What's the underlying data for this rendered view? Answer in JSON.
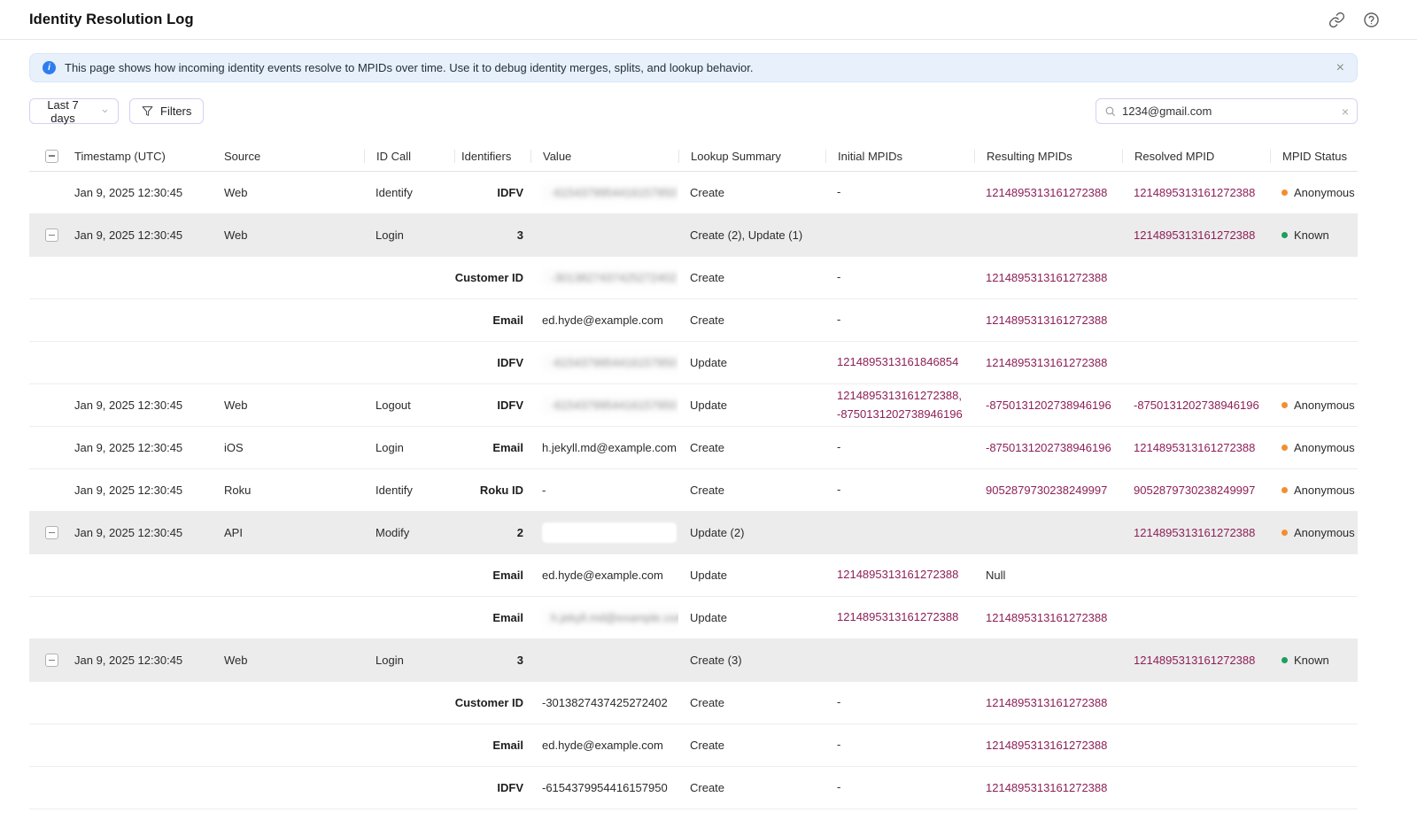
{
  "header": {
    "title": "Identity Resolution Log"
  },
  "banner": {
    "text": "This page shows how incoming identity events resolve to MPIDs over time. Use it to debug identity merges, splits, and lookup behavior.",
    "close_glyph": "×"
  },
  "toolbar": {
    "date_range": "Last 7 days",
    "filters_label": "Filters",
    "search_value": "1234@gmail.com",
    "clear_glyph": "×"
  },
  "colors": {
    "mpid": "#8D2058",
    "anonymous": "#F18F2F",
    "known": "#1BA05B",
    "banner_bg": "#E8F1FB",
    "accent_border": "#D9CEF5"
  },
  "table": {
    "columns": [
      "",
      "Timestamp (UTC)",
      "Source",
      "ID Call",
      "Identifiers",
      "Value",
      "Lookup Summary",
      "Initial MPIDs",
      "Resulting MPIDs",
      "Resolved MPID",
      "MPID Status"
    ],
    "rows": [
      {
        "type": "single",
        "expandable": false,
        "timestamp": "Jan 9, 2025 12:30:45",
        "source": "Web",
        "id_call": "Identify",
        "identifier": "IDFV",
        "value": {
          "text": "-6154379954416157950",
          "blurred": true
        },
        "lookup": "Create",
        "initial": {
          "lines": [
            "-"
          ],
          "mpid": false
        },
        "resulting": {
          "text": "1214895313161272388",
          "mpid": true
        },
        "resolved": {
          "text": "1214895313161272388",
          "mpid": true
        },
        "status": {
          "label": "Anonymous",
          "color": "anonymous"
        }
      },
      {
        "type": "group",
        "expandable": true,
        "timestamp": "Jan 9, 2025 12:30:45",
        "source": "Web",
        "id_call": "Login",
        "identifier": "3",
        "value": null,
        "lookup": "Create (2), Update (1)",
        "initial": {
          "lines": [],
          "mpid": false
        },
        "resulting": {
          "text": "",
          "mpid": false
        },
        "resolved": {
          "text": "1214895313161272388",
          "mpid": true
        },
        "status": {
          "label": "Known",
          "color": "known"
        }
      },
      {
        "type": "child",
        "expandable": false,
        "timestamp": "",
        "source": "",
        "id_call": "",
        "identifier": "Customer ID",
        "value": {
          "text": "-3013827437425272402",
          "blurred": true
        },
        "lookup": "Create",
        "initial": {
          "lines": [
            "-"
          ],
          "mpid": false
        },
        "resulting": {
          "text": "1214895313161272388",
          "mpid": true
        },
        "resolved": {
          "text": "",
          "mpid": false
        },
        "status": null
      },
      {
        "type": "child",
        "expandable": false,
        "timestamp": "",
        "source": "",
        "id_call": "",
        "identifier": "Email",
        "value": {
          "text": "ed.hyde@example.com",
          "blurred": false
        },
        "lookup": "Create",
        "initial": {
          "lines": [
            "-"
          ],
          "mpid": false
        },
        "resulting": {
          "text": "1214895313161272388",
          "mpid": true
        },
        "resolved": {
          "text": "",
          "mpid": false
        },
        "status": null
      },
      {
        "type": "child",
        "expandable": false,
        "timestamp": "",
        "source": "",
        "id_call": "",
        "identifier": "IDFV",
        "value": {
          "text": "-6154379954416157950",
          "blurred": true
        },
        "lookup": "Update",
        "initial": {
          "lines": [
            "1214895313161846854"
          ],
          "mpid": true
        },
        "resulting": {
          "text": "1214895313161272388",
          "mpid": true
        },
        "resolved": {
          "text": "",
          "mpid": false
        },
        "status": null
      },
      {
        "type": "single",
        "expandable": false,
        "timestamp": "Jan 9, 2025 12:30:45",
        "source": "Web",
        "id_call": "Logout",
        "identifier": "IDFV",
        "value": {
          "text": "-6154379954416157950",
          "blurred": true
        },
        "lookup": "Update",
        "initial": {
          "lines": [
            "1214895313161272388,",
            "-8750131202738946196"
          ],
          "mpid": true
        },
        "resulting": {
          "text": "-8750131202738946196",
          "mpid": true
        },
        "resolved": {
          "text": "-8750131202738946196",
          "mpid": true
        },
        "status": {
          "label": "Anonymous",
          "color": "anonymous"
        }
      },
      {
        "type": "single",
        "expandable": false,
        "timestamp": "Jan 9, 2025 12:30:45",
        "source": "iOS",
        "id_call": "Login",
        "identifier": "Email",
        "value": {
          "text": "h.jekyll.md@example.com",
          "blurred": false
        },
        "lookup": "Create",
        "initial": {
          "lines": [
            "-"
          ],
          "mpid": false
        },
        "resulting": {
          "text": "-8750131202738946196",
          "mpid": true
        },
        "resolved": {
          "text": "1214895313161272388",
          "mpid": true
        },
        "status": {
          "label": "Anonymous",
          "color": "anonymous"
        }
      },
      {
        "type": "single",
        "expandable": false,
        "timestamp": "Jan 9, 2025 12:30:45",
        "source": "Roku",
        "id_call": "Identify",
        "identifier": "Roku ID",
        "value": {
          "text": "-",
          "blurred": false
        },
        "lookup": "Create",
        "initial": {
          "lines": [
            "-"
          ],
          "mpid": false
        },
        "resulting": {
          "text": "9052879730238249997",
          "mpid": true
        },
        "resolved": {
          "text": "9052879730238249997",
          "mpid": true
        },
        "status": {
          "label": "Anonymous",
          "color": "anonymous"
        }
      },
      {
        "type": "group",
        "expandable": true,
        "timestamp": "Jan 9, 2025 12:30:45",
        "source": "API",
        "id_call": "Modify",
        "identifier": "2",
        "value": {
          "box": true
        },
        "lookup": "Update (2)",
        "initial": {
          "lines": [],
          "mpid": false
        },
        "resulting": {
          "text": "",
          "mpid": false
        },
        "resolved": {
          "text": "1214895313161272388",
          "mpid": true
        },
        "status": {
          "label": "Anonymous",
          "color": "anonymous"
        }
      },
      {
        "type": "child",
        "expandable": false,
        "timestamp": "",
        "source": "",
        "id_call": "",
        "identifier": "Email",
        "value": {
          "text": "ed.hyde@example.com",
          "blurred": false
        },
        "lookup": "Update",
        "initial": {
          "lines": [
            "1214895313161272388"
          ],
          "mpid": true
        },
        "resulting": {
          "text": "Null",
          "mpid": false
        },
        "resolved": {
          "text": "",
          "mpid": false
        },
        "status": null
      },
      {
        "type": "child",
        "expandable": false,
        "timestamp": "",
        "source": "",
        "id_call": "",
        "identifier": "Email",
        "value": {
          "text": "h.jekyll.md@example.com",
          "blurred": true
        },
        "lookup": "Update",
        "initial": {
          "lines": [
            "1214895313161272388"
          ],
          "mpid": true
        },
        "resulting": {
          "text": "1214895313161272388",
          "mpid": true
        },
        "resolved": {
          "text": "",
          "mpid": false
        },
        "status": null
      },
      {
        "type": "group",
        "expandable": true,
        "timestamp": "Jan 9, 2025 12:30:45",
        "source": "Web",
        "id_call": "Login",
        "identifier": "3",
        "value": null,
        "lookup": "Create (3)",
        "initial": {
          "lines": [],
          "mpid": false
        },
        "resulting": {
          "text": "",
          "mpid": false
        },
        "resolved": {
          "text": "1214895313161272388",
          "mpid": true
        },
        "status": {
          "label": "Known",
          "color": "known"
        }
      },
      {
        "type": "child",
        "expandable": false,
        "timestamp": "",
        "source": "",
        "id_call": "",
        "identifier": "Customer ID",
        "value": {
          "text": "-3013827437425272402",
          "blurred": false
        },
        "lookup": "Create",
        "initial": {
          "lines": [
            "-"
          ],
          "mpid": false
        },
        "resulting": {
          "text": "1214895313161272388",
          "mpid": true
        },
        "resolved": {
          "text": "",
          "mpid": false
        },
        "status": null
      },
      {
        "type": "child",
        "expandable": false,
        "timestamp": "",
        "source": "",
        "id_call": "",
        "identifier": "Email",
        "value": {
          "text": "ed.hyde@example.com",
          "blurred": false
        },
        "lookup": "Create",
        "initial": {
          "lines": [
            "-"
          ],
          "mpid": false
        },
        "resulting": {
          "text": "1214895313161272388",
          "mpid": true
        },
        "resolved": {
          "text": "",
          "mpid": false
        },
        "status": null
      },
      {
        "type": "child",
        "expandable": false,
        "timestamp": "",
        "source": "",
        "id_call": "",
        "identifier": "IDFV",
        "value": {
          "text": "-6154379954416157950",
          "blurred": false
        },
        "lookup": "Create",
        "initial": {
          "lines": [
            "-"
          ],
          "mpid": false
        },
        "resulting": {
          "text": "1214895313161272388",
          "mpid": true
        },
        "resolved": {
          "text": "",
          "mpid": false
        },
        "status": null
      }
    ]
  }
}
